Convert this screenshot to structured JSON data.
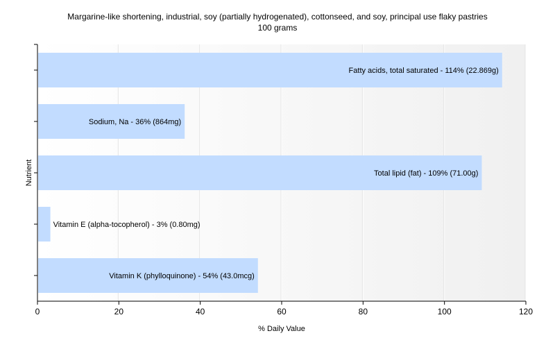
{
  "chart_data": {
    "type": "bar",
    "orientation": "horizontal",
    "title": "Margarine-like shortening, industrial, soy (partially hydrogenated), cottonseed, and soy, principal use flaky pastries",
    "subtitle": "100 grams",
    "xlabel": "% Daily Value",
    "ylabel": "Nutrient",
    "xlim": [
      0,
      120
    ],
    "xticks": [
      0,
      20,
      40,
      60,
      80,
      100,
      120
    ],
    "grid": true,
    "categories": [
      "Fatty acids, total saturated",
      "Sodium, Na",
      "Total lipid (fat)",
      "Vitamin E (alpha-tocopherol)",
      "Vitamin K (phylloquinone)"
    ],
    "values": [
      114,
      36,
      109,
      3,
      54
    ],
    "labels": [
      "Fatty acids, total saturated - 114% (22.869g)",
      "Sodium, Na - 36% (864mg)",
      "Total lipid (fat) - 109% (71.00g)",
      "Vitamin E (alpha-tocopherol) - 3% (0.80mg)",
      "Vitamin K (phylloquinone) - 54% (43.0mcg)"
    ],
    "bar_color": "#c2dcff"
  }
}
